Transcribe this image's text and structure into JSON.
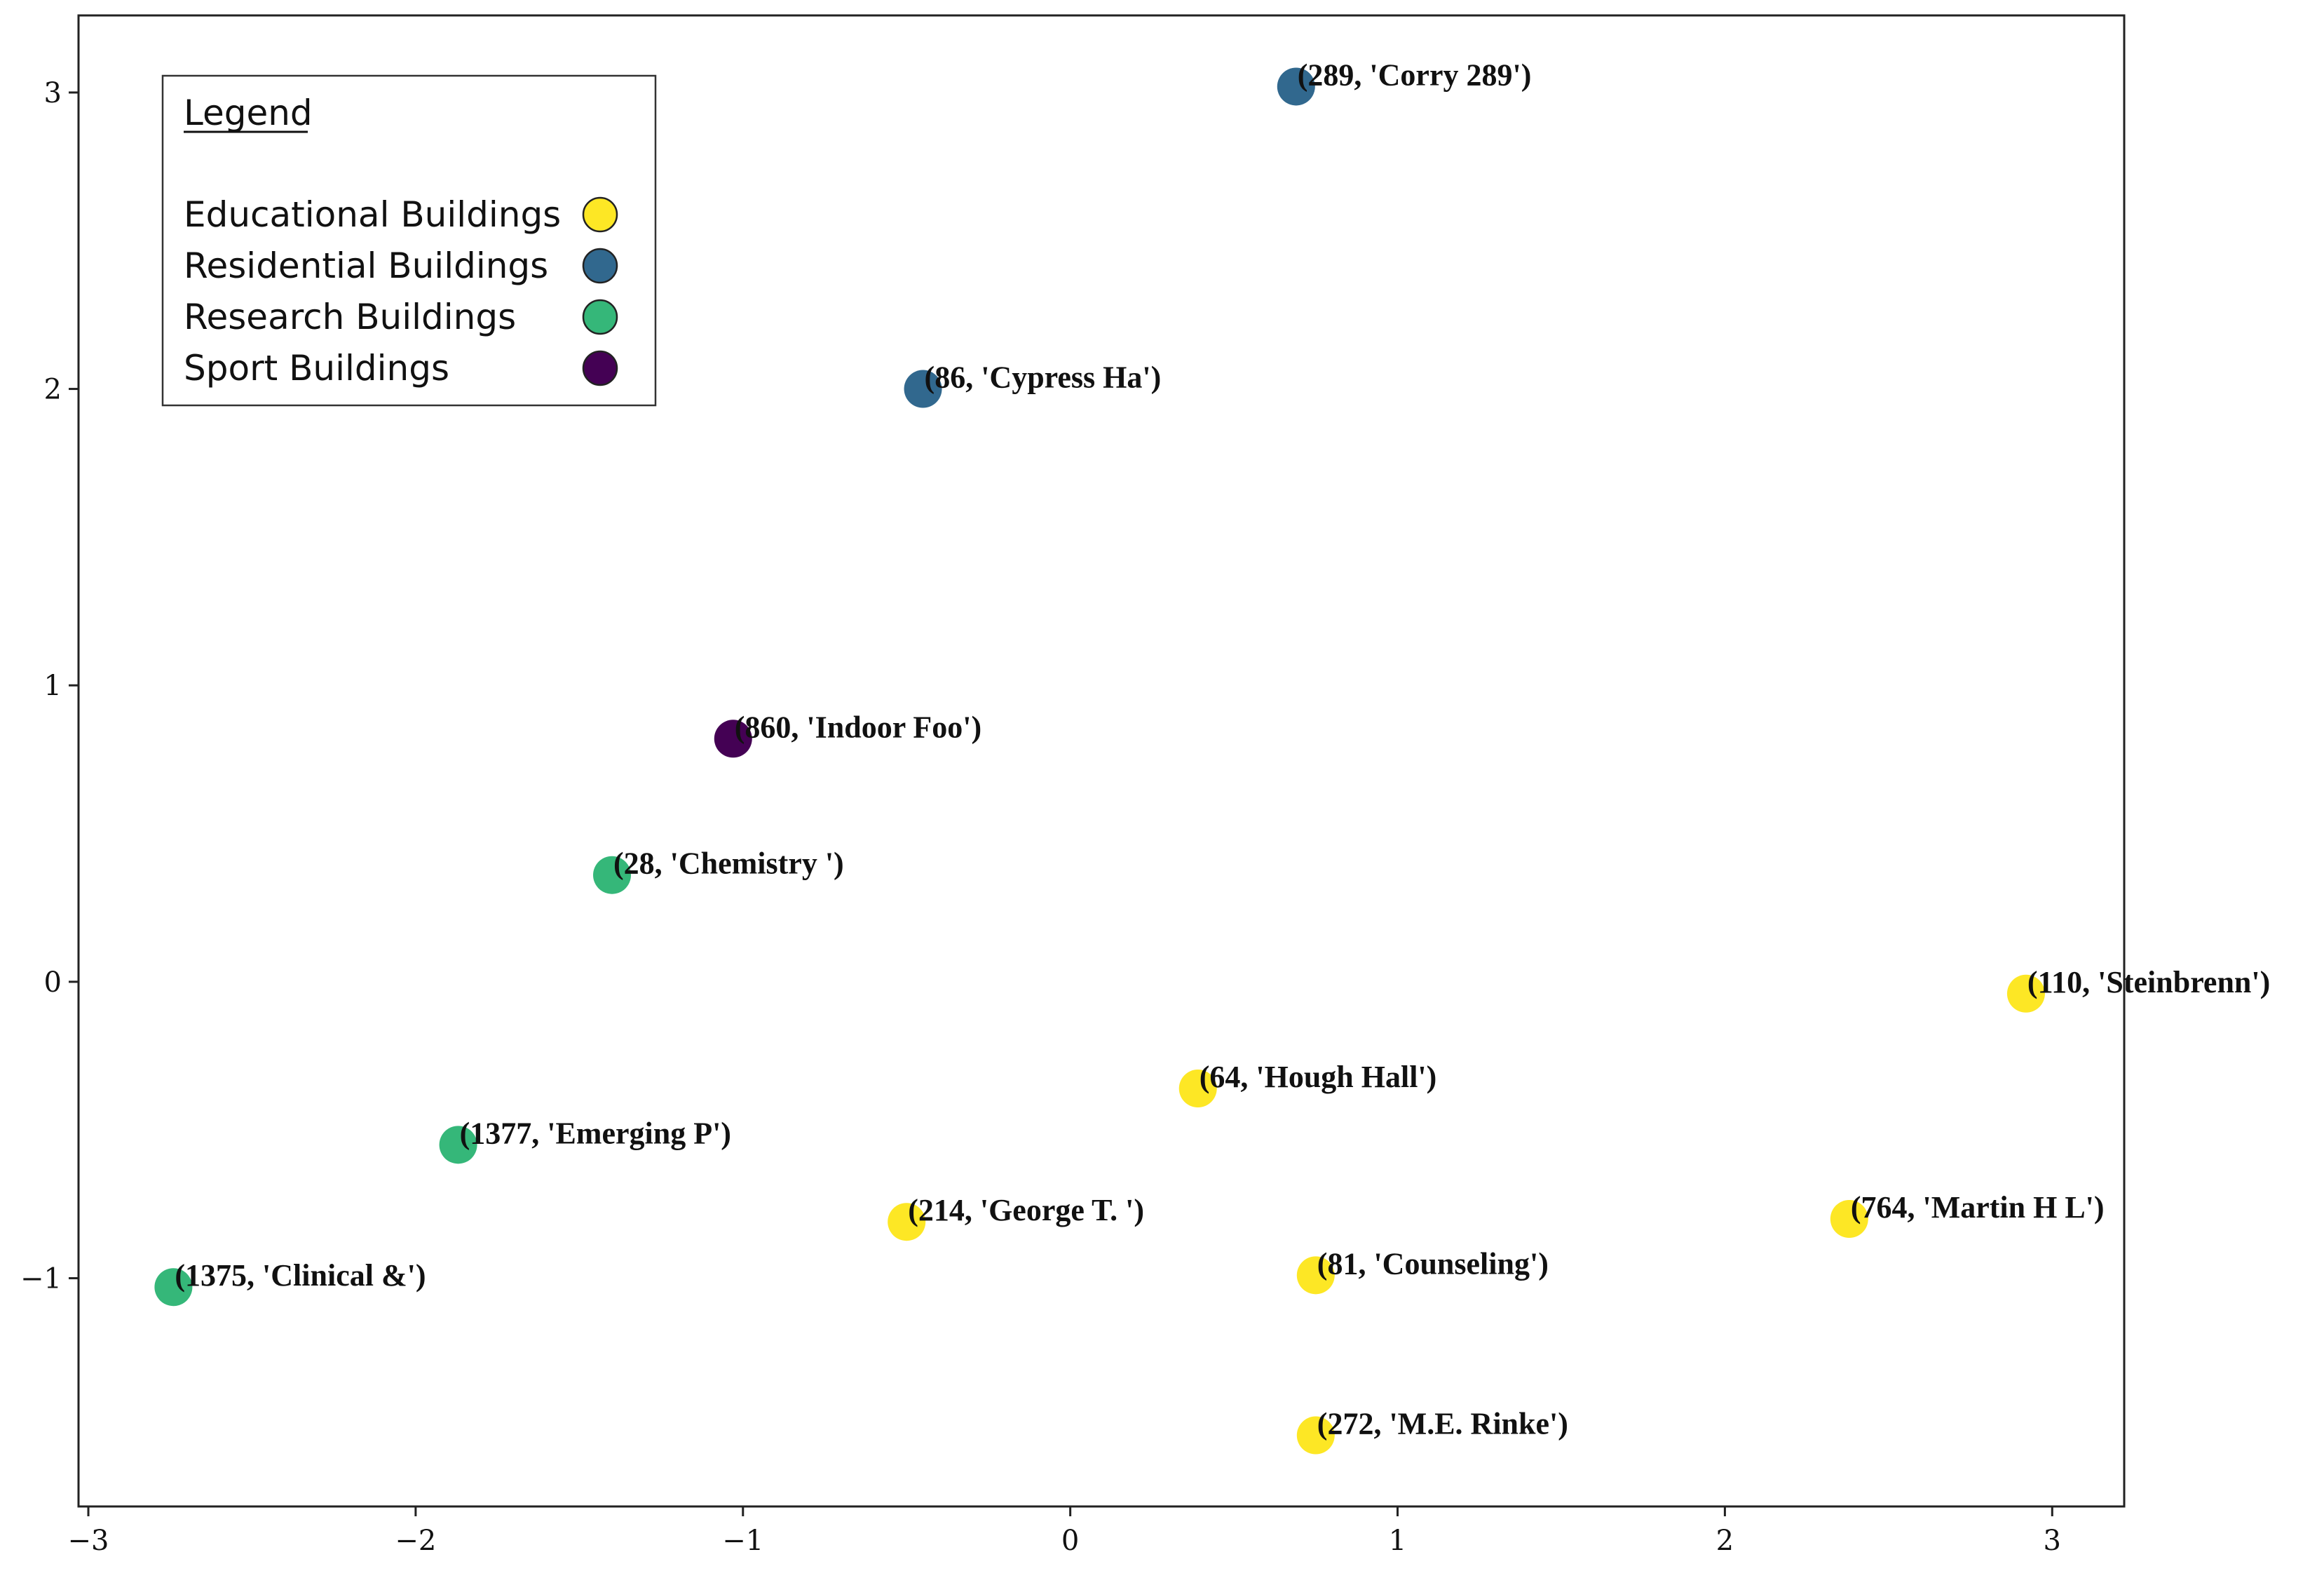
{
  "chart_data": {
    "type": "scatter",
    "title": "",
    "xlabel": "",
    "ylabel": "",
    "xlim": [
      -3.03,
      3.22
    ],
    "ylim": [
      -1.77,
      3.26
    ],
    "grid": false,
    "x_ticks": [
      -3,
      -2,
      -1,
      0,
      1,
      2,
      3
    ],
    "x_tick_labels": [
      "−3",
      "−2",
      "−1",
      "0",
      "1",
      "2",
      "3"
    ],
    "y_ticks": [
      -1,
      0,
      1,
      2,
      3
    ],
    "y_tick_labels": [
      "−1",
      "0",
      "1",
      "2",
      "3"
    ],
    "legend": {
      "title": "Legend",
      "placement": "top-left",
      "entries": [
        {
          "label": "Educational Buildings",
          "category": "educational"
        },
        {
          "label": "Residential Buildings",
          "category": "residential"
        },
        {
          "label": "Research Buildings",
          "category": "research"
        },
        {
          "label": "Sport Buildings",
          "category": "sport"
        }
      ]
    },
    "colors": {
      "educational": "#fde725",
      "residential": "#31688e",
      "research": "#35b779",
      "sport": "#440154"
    },
    "points": [
      {
        "x": 0.69,
        "y": 3.02,
        "category": "residential",
        "label": "(289, 'Corry 289')"
      },
      {
        "x": -0.45,
        "y": 2.0,
        "category": "residential",
        "label": "(86, 'Cypress Ha')"
      },
      {
        "x": -1.03,
        "y": 0.82,
        "category": "sport",
        "label": "(860, 'Indoor Foo')"
      },
      {
        "x": -1.4,
        "y": 0.36,
        "category": "research",
        "label": "(28, 'Chemistry ')"
      },
      {
        "x": 2.92,
        "y": -0.04,
        "category": "educational",
        "label": "(110, 'Steinbrenn')"
      },
      {
        "x": 0.39,
        "y": -0.36,
        "category": "educational",
        "label": "(64, 'Hough Hall')"
      },
      {
        "x": -1.87,
        "y": -0.55,
        "category": "research",
        "label": "(1377, 'Emerging P')"
      },
      {
        "x": -0.5,
        "y": -0.81,
        "category": "educational",
        "label": "(214, 'George T. ')"
      },
      {
        "x": 2.38,
        "y": -0.8,
        "category": "educational",
        "label": "(764, 'Martin H L')"
      },
      {
        "x": 0.75,
        "y": -0.99,
        "category": "educational",
        "label": "(81, 'Counseling')"
      },
      {
        "x": -2.74,
        "y": -1.03,
        "category": "research",
        "label": "(1375, 'Clinical &')"
      },
      {
        "x": 0.75,
        "y": -1.53,
        "category": "educational",
        "label": "(272, 'M.E. Rinke')"
      }
    ]
  }
}
